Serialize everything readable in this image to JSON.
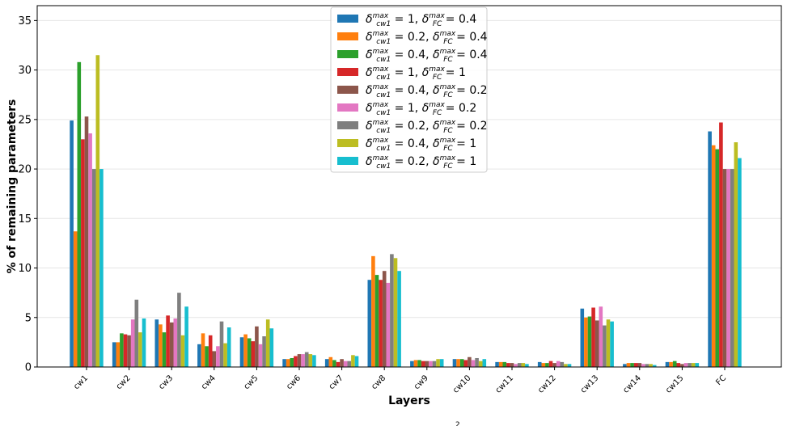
{
  "chart_data": {
    "type": "bar",
    "xlabel": "Layers",
    "ylabel": "% of remaining parameters",
    "ylim": [
      0,
      36.5
    ],
    "yticks": [
      0,
      5,
      10,
      15,
      20,
      25,
      30,
      35
    ],
    "grid": "y",
    "legend_position": "top-center",
    "categories": [
      "cw1",
      "cw2",
      "cw3",
      "cw4",
      "cw5",
      "cw6",
      "cw7",
      "cw8",
      "cw9",
      "cw10",
      "cw11",
      "cw12",
      "cw13",
      "cw14",
      "cw15",
      "FC"
    ],
    "series": [
      {
        "name": "δ_cw1^max = 1, δ_FC^max = 0.4",
        "a": "1",
        "b": "0.4",
        "color": "#1f77b4",
        "values": [
          24.9,
          2.5,
          4.8,
          2.3,
          3.0,
          0.8,
          0.8,
          8.8,
          0.6,
          0.8,
          0.5,
          0.5,
          5.9,
          0.3,
          0.5,
          23.8
        ]
      },
      {
        "name": "δ_cw1^max = 0.2, δ_FC^max = 0.4",
        "a": "0.2",
        "b": "0.4",
        "color": "#ff7f0e",
        "values": [
          13.7,
          2.5,
          4.3,
          3.4,
          3.3,
          0.8,
          1.0,
          11.2,
          0.7,
          0.8,
          0.5,
          0.4,
          5.0,
          0.4,
          0.5,
          22.4
        ]
      },
      {
        "name": "δ_cw1^max = 0.4, δ_FC^max = 0.4",
        "a": "0.4",
        "b": "0.4",
        "color": "#2ca02c",
        "values": [
          30.8,
          3.4,
          3.5,
          2.1,
          2.9,
          0.9,
          0.7,
          9.3,
          0.7,
          0.8,
          0.5,
          0.4,
          5.1,
          0.4,
          0.6,
          22.0
        ]
      },
      {
        "name": "δ_cw1^max = 1, δ_FC^max = 1",
        "a": "1",
        "b": "1",
        "color": "#d62728",
        "values": [
          23.0,
          3.3,
          5.2,
          3.2,
          2.6,
          1.1,
          0.5,
          8.8,
          0.6,
          0.7,
          0.4,
          0.6,
          6.0,
          0.4,
          0.4,
          24.7
        ]
      },
      {
        "name": "δ_cw1^max = 0.4, δ_FC^max = 0.2",
        "a": "0.4",
        "b": "0.2",
        "color": "#8c564b",
        "values": [
          25.3,
          3.2,
          4.5,
          1.6,
          4.1,
          1.3,
          0.8,
          9.7,
          0.6,
          1.0,
          0.4,
          0.4,
          4.7,
          0.4,
          0.3,
          20.0
        ]
      },
      {
        "name": "δ_cw1^max = 1, δ_FC^max = 0.2",
        "a": "1",
        "b": "0.2",
        "color": "#e377c2",
        "values": [
          23.6,
          4.8,
          4.9,
          2.1,
          2.3,
          1.3,
          0.6,
          8.5,
          0.6,
          0.7,
          0.3,
          0.6,
          6.1,
          0.3,
          0.4,
          20.0
        ]
      },
      {
        "name": "δ_cw1^max = 0.2, δ_FC^max = 0.2",
        "a": "0.2",
        "b": "0.2",
        "color": "#7f7f7f",
        "values": [
          20.0,
          6.8,
          7.5,
          4.6,
          3.1,
          1.5,
          0.6,
          11.4,
          0.6,
          0.9,
          0.4,
          0.5,
          4.2,
          0.3,
          0.4,
          20.0
        ]
      },
      {
        "name": "δ_cw1^max = 0.4, δ_FC^max = 1",
        "a": "0.4",
        "b": "1",
        "color": "#bcbd22",
        "values": [
          31.5,
          3.5,
          3.2,
          2.4,
          4.8,
          1.3,
          1.2,
          11.0,
          0.8,
          0.6,
          0.4,
          0.3,
          4.8,
          0.3,
          0.4,
          22.7
        ]
      },
      {
        "name": "δ_cw1^max = 0.2, δ_FC^max = 1",
        "a": "0.2",
        "b": "1",
        "color": "#17becf",
        "values": [
          20.0,
          4.9,
          6.1,
          4.0,
          3.9,
          1.2,
          1.1,
          9.7,
          0.8,
          0.8,
          0.3,
          0.3,
          4.6,
          0.2,
          0.4,
          21.1
        ]
      }
    ],
    "footer_fragment": "2"
  }
}
